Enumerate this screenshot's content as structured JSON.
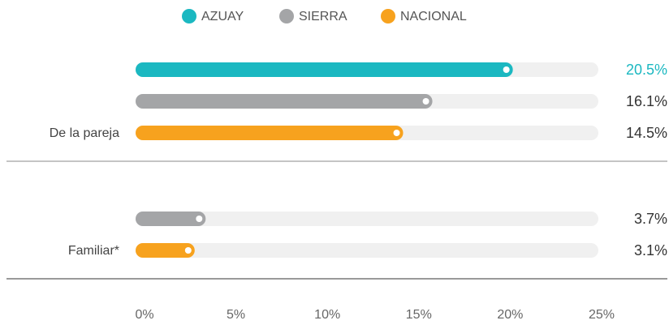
{
  "chart_data": {
    "type": "bar",
    "orientation": "horizontal",
    "categories": [
      "De la pareja",
      "Familiar*"
    ],
    "series": [
      {
        "name": "AZUAY",
        "color": "#1bb8c1",
        "values": [
          20.5,
          null
        ],
        "value_labels": [
          "20.5%",
          null
        ]
      },
      {
        "name": "SIERRA",
        "color": "#a4a5a7",
        "values": [
          16.1,
          3.7
        ],
        "value_labels": [
          "16.1%",
          "3.7%"
        ]
      },
      {
        "name": "NACIONAL",
        "color": "#f7a21e",
        "values": [
          14.5,
          3.1
        ],
        "value_labels": [
          "14.5%",
          "3.1%"
        ]
      }
    ],
    "xlim": [
      0,
      25
    ],
    "xticks": [
      {
        "value": 0,
        "label": "0%"
      },
      {
        "value": 5,
        "label": "5%"
      },
      {
        "value": 10,
        "label": "10%"
      },
      {
        "value": 15,
        "label": "15%"
      },
      {
        "value": 20,
        "label": "20%"
      },
      {
        "value": 25,
        "label": "25%"
      }
    ],
    "legend": "top"
  }
}
